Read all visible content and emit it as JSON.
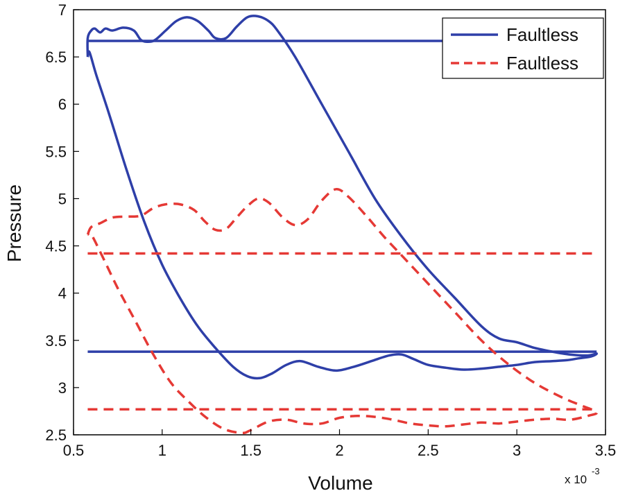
{
  "chart_data": {
    "type": "line",
    "xlabel": "Volume",
    "ylabel": "Pressure",
    "x_exponent_label": "x 10",
    "x_exponent_power": "-3",
    "xlim": [
      0.5,
      3.5
    ],
    "ylim": [
      2.5,
      7
    ],
    "xticks": [
      "0.5",
      "1",
      "1.5",
      "2",
      "2.5",
      "3",
      "3.5"
    ],
    "yticks": [
      "2.5",
      "3",
      "3.5",
      "4",
      "4.5",
      "5",
      "5.5",
      "6",
      "6.5",
      "7"
    ],
    "grid": false,
    "legend_position": "top-right",
    "legend": [
      "Faultless",
      "Faultless"
    ],
    "series": [
      {
        "name": "Faultless",
        "color": "#2E3FA8",
        "style": "solid",
        "loop": [
          [
            0.58,
            6.5
          ],
          [
            0.58,
            6.7
          ],
          [
            0.6,
            6.78
          ],
          [
            0.62,
            6.8
          ],
          [
            0.65,
            6.76
          ],
          [
            0.68,
            6.8
          ],
          [
            0.72,
            6.78
          ],
          [
            0.78,
            6.81
          ],
          [
            0.84,
            6.78
          ],
          [
            0.88,
            6.68
          ],
          [
            0.92,
            6.66
          ],
          [
            0.96,
            6.68
          ],
          [
            1.02,
            6.78
          ],
          [
            1.08,
            6.88
          ],
          [
            1.14,
            6.92
          ],
          [
            1.2,
            6.88
          ],
          [
            1.26,
            6.78
          ],
          [
            1.3,
            6.7
          ],
          [
            1.36,
            6.7
          ],
          [
            1.42,
            6.82
          ],
          [
            1.48,
            6.92
          ],
          [
            1.54,
            6.93
          ],
          [
            1.6,
            6.88
          ],
          [
            1.65,
            6.78
          ],
          [
            1.75,
            6.5
          ],
          [
            1.9,
            6.0
          ],
          [
            2.05,
            5.5
          ],
          [
            2.2,
            5.0
          ],
          [
            2.35,
            4.6
          ],
          [
            2.5,
            4.25
          ],
          [
            2.65,
            3.95
          ],
          [
            2.8,
            3.65
          ],
          [
            2.9,
            3.52
          ],
          [
            3.0,
            3.48
          ],
          [
            3.1,
            3.42
          ],
          [
            3.2,
            3.38
          ],
          [
            3.3,
            3.35
          ],
          [
            3.4,
            3.34
          ],
          [
            3.45,
            3.36
          ],
          [
            3.42,
            3.33
          ],
          [
            3.35,
            3.31
          ],
          [
            3.28,
            3.29
          ],
          [
            3.2,
            3.28
          ],
          [
            3.1,
            3.27
          ],
          [
            3.0,
            3.24
          ],
          [
            2.9,
            3.22
          ],
          [
            2.8,
            3.2
          ],
          [
            2.7,
            3.19
          ],
          [
            2.6,
            3.21
          ],
          [
            2.5,
            3.24
          ],
          [
            2.42,
            3.3
          ],
          [
            2.35,
            3.35
          ],
          [
            2.28,
            3.34
          ],
          [
            2.18,
            3.28
          ],
          [
            2.08,
            3.22
          ],
          [
            1.98,
            3.18
          ],
          [
            1.88,
            3.22
          ],
          [
            1.78,
            3.28
          ],
          [
            1.7,
            3.24
          ],
          [
            1.62,
            3.15
          ],
          [
            1.55,
            3.1
          ],
          [
            1.48,
            3.12
          ],
          [
            1.4,
            3.22
          ],
          [
            1.3,
            3.42
          ],
          [
            1.2,
            3.65
          ],
          [
            1.1,
            3.95
          ],
          [
            1.0,
            4.3
          ],
          [
            0.9,
            4.75
          ],
          [
            0.8,
            5.3
          ],
          [
            0.7,
            5.9
          ],
          [
            0.63,
            6.3
          ],
          [
            0.59,
            6.55
          ],
          [
            0.58,
            6.5
          ]
        ],
        "upper_level": 6.67,
        "upper_range": [
          0.58,
          3.45
        ],
        "lower_level": 3.38,
        "lower_range": [
          0.58,
          3.45
        ]
      },
      {
        "name": "Faultless",
        "color": "#E53935",
        "style": "dashed",
        "loop": [
          [
            0.58,
            4.62
          ],
          [
            0.6,
            4.7
          ],
          [
            0.65,
            4.74
          ],
          [
            0.72,
            4.8
          ],
          [
            0.8,
            4.81
          ],
          [
            0.88,
            4.82
          ],
          [
            0.95,
            4.9
          ],
          [
            1.02,
            4.94
          ],
          [
            1.1,
            4.94
          ],
          [
            1.18,
            4.88
          ],
          [
            1.24,
            4.76
          ],
          [
            1.3,
            4.67
          ],
          [
            1.36,
            4.68
          ],
          [
            1.42,
            4.8
          ],
          [
            1.48,
            4.92
          ],
          [
            1.54,
            5.0
          ],
          [
            1.6,
            4.96
          ],
          [
            1.68,
            4.8
          ],
          [
            1.75,
            4.72
          ],
          [
            1.82,
            4.78
          ],
          [
            1.9,
            4.98
          ],
          [
            1.98,
            5.1
          ],
          [
            2.05,
            5.02
          ],
          [
            2.15,
            4.82
          ],
          [
            2.25,
            4.6
          ],
          [
            2.35,
            4.4
          ],
          [
            2.5,
            4.1
          ],
          [
            2.65,
            3.8
          ],
          [
            2.8,
            3.5
          ],
          [
            2.95,
            3.25
          ],
          [
            3.1,
            3.05
          ],
          [
            3.25,
            2.9
          ],
          [
            3.35,
            2.82
          ],
          [
            3.45,
            2.74
          ],
          [
            3.4,
            2.7
          ],
          [
            3.3,
            2.66
          ],
          [
            3.2,
            2.67
          ],
          [
            3.1,
            2.66
          ],
          [
            3.0,
            2.64
          ],
          [
            2.9,
            2.62
          ],
          [
            2.8,
            2.63
          ],
          [
            2.7,
            2.61
          ],
          [
            2.6,
            2.59
          ],
          [
            2.5,
            2.6
          ],
          [
            2.4,
            2.62
          ],
          [
            2.3,
            2.66
          ],
          [
            2.2,
            2.69
          ],
          [
            2.1,
            2.7
          ],
          [
            2.0,
            2.68
          ],
          [
            1.9,
            2.62
          ],
          [
            1.8,
            2.62
          ],
          [
            1.7,
            2.66
          ],
          [
            1.6,
            2.64
          ],
          [
            1.5,
            2.55
          ],
          [
            1.45,
            2.52
          ],
          [
            1.35,
            2.56
          ],
          [
            1.25,
            2.68
          ],
          [
            1.15,
            2.85
          ],
          [
            1.05,
            3.05
          ],
          [
            0.95,
            3.35
          ],
          [
            0.85,
            3.7
          ],
          [
            0.75,
            4.05
          ],
          [
            0.66,
            4.4
          ],
          [
            0.6,
            4.62
          ],
          [
            0.58,
            4.62
          ]
        ],
        "upper_level": 4.42,
        "upper_range": [
          0.58,
          3.45
        ],
        "lower_level": 2.77,
        "lower_range": [
          0.58,
          3.45
        ]
      }
    ]
  }
}
